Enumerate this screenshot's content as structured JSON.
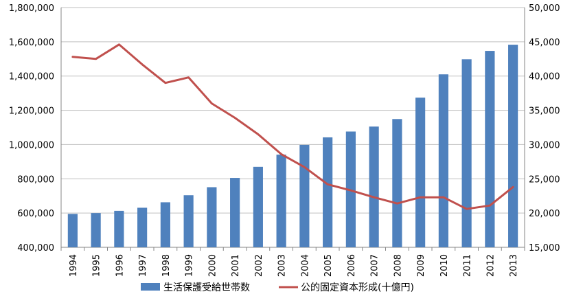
{
  "chart_data": {
    "type": "bar+line",
    "categories": [
      "1994",
      "1995",
      "1996",
      "1997",
      "1998",
      "1999",
      "2000",
      "2001",
      "2002",
      "2003",
      "2004",
      "2005",
      "2006",
      "2007",
      "2008",
      "2009",
      "2010",
      "2011",
      "2012",
      "2013"
    ],
    "series": [
      {
        "name": "生活保護受給世帯数",
        "type": "bar",
        "axis": "left",
        "color": "#4f81bd",
        "values": [
          595000,
          600000,
          613000,
          631000,
          663000,
          704000,
          751000,
          805000,
          870000,
          941000,
          998000,
          1042000,
          1076000,
          1105000,
          1149000,
          1274000,
          1410000,
          1498000,
          1547000,
          1583000
        ]
      },
      {
        "name": "公的固定資本形成(十億円)",
        "type": "line",
        "axis": "right",
        "color": "#c0504d",
        "values": [
          42800,
          42500,
          44600,
          41700,
          39000,
          39800,
          36000,
          33900,
          31500,
          28600,
          26700,
          24200,
          23300,
          22300,
          21400,
          22300,
          22300,
          20600,
          21100,
          23800
        ]
      }
    ],
    "y_left": {
      "min": 400000,
      "max": 1800000,
      "step": 200000,
      "tick_labels": [
        "400,000",
        "600,000",
        "800,000",
        "1,000,000",
        "1,200,000",
        "1,400,000",
        "1,600,000",
        "1,800,000"
      ]
    },
    "y_right": {
      "min": 15000,
      "max": 50000,
      "step": 5000,
      "tick_labels": [
        "15,000",
        "20,000",
        "25,000",
        "30,000",
        "35,000",
        "40,000",
        "45,000",
        "50,000"
      ]
    },
    "grid": true,
    "legend_position": "bottom",
    "title": "",
    "xlabel": "",
    "ylabel": ""
  }
}
